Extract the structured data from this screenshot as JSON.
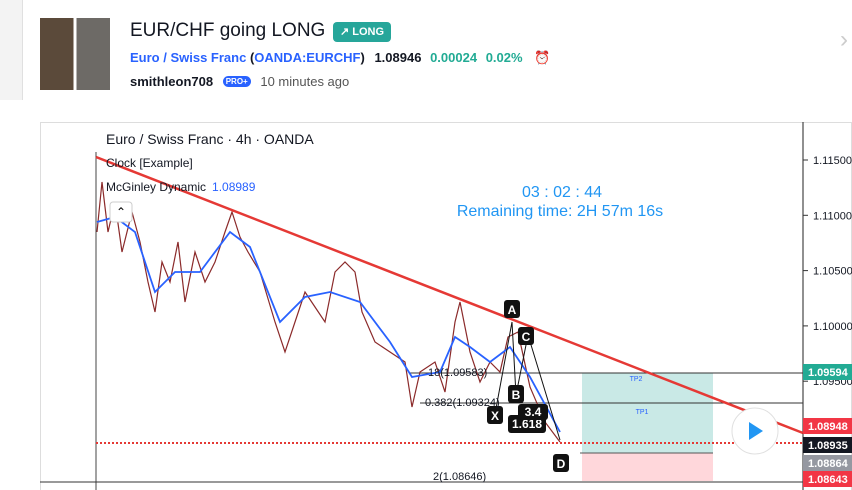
{
  "header": {
    "title": "EUR/CHF going LONG",
    "badge": "LONG",
    "instrument": "Euro / Swiss Franc",
    "open_paren": "(",
    "symbol": "OANDA:EURCHF",
    "close_paren": ")",
    "price": "1.08946",
    "change": "0.00024",
    "change_pct": "0.02%",
    "author": "smithleon708",
    "author_badge": "PRO+",
    "time": "10 minutes ago"
  },
  "chart": {
    "legend": {
      "title": "Euro / Swiss Franc · 4h · OANDA",
      "indicator1": "Clock [Example]",
      "indicator2": "McGinley Dynamic",
      "indicator2_value": "1.08989"
    },
    "clock": {
      "countdown": "03 : 02 : 44",
      "remaining": "Remaining time: 2H 57m 16s"
    },
    "price_scale": [
      "1.11500",
      "1.11000",
      "1.10500",
      "1.10000",
      "1.09500"
    ],
    "price_tags": [
      {
        "label": "1.09594",
        "color": "#22ab94"
      },
      {
        "label": "1.08948",
        "color": "#f23645"
      },
      {
        "label": "1.08935",
        "color": "#131722"
      },
      {
        "label": "1.08864",
        "color": "#9598a1"
      },
      {
        "label": "1.08643",
        "color": "#f23645"
      }
    ],
    "pattern_points": [
      "A",
      "C",
      "B",
      "X",
      "D"
    ],
    "ratios": [
      "1.618",
      "3.4"
    ],
    "fib_labels": [
      "0.382(1.09324)",
      "2(1.08646)",
      "18(1.09583)"
    ],
    "position": {
      "tp2": "TP2",
      "tp1": "TP1"
    }
  }
}
